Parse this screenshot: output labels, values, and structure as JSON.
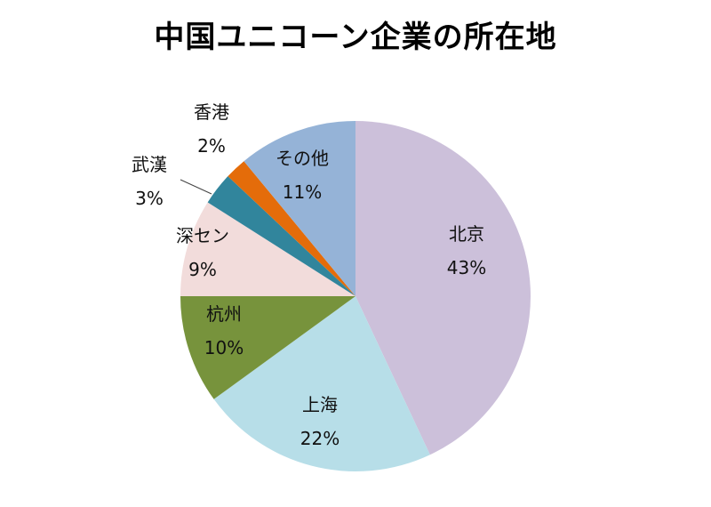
{
  "chart_data": {
    "type": "pie",
    "title": "中国ユニコーン企業の所在地",
    "slices": [
      {
        "label": "北京",
        "value": 43,
        "display": "43%",
        "color": "#ccc0da"
      },
      {
        "label": "上海",
        "value": 22,
        "display": "22%",
        "color": "#b7dee8"
      },
      {
        "label": "杭州",
        "value": 10,
        "display": "10%",
        "color": "#77933c"
      },
      {
        "label": "深セン",
        "value": 9,
        "display": "9%",
        "color": "#f2dcdb"
      },
      {
        "label": "武漢",
        "value": 3,
        "display": "3%",
        "color": "#31859c"
      },
      {
        "label": "香港",
        "value": 2,
        "display": "2%",
        "color": "#e46c0a"
      },
      {
        "label": "その他",
        "value": 11,
        "display": "11%",
        "color": "#95b3d7"
      }
    ],
    "start_angle_deg": 0,
    "direction": "clockwise",
    "legend": "none"
  }
}
